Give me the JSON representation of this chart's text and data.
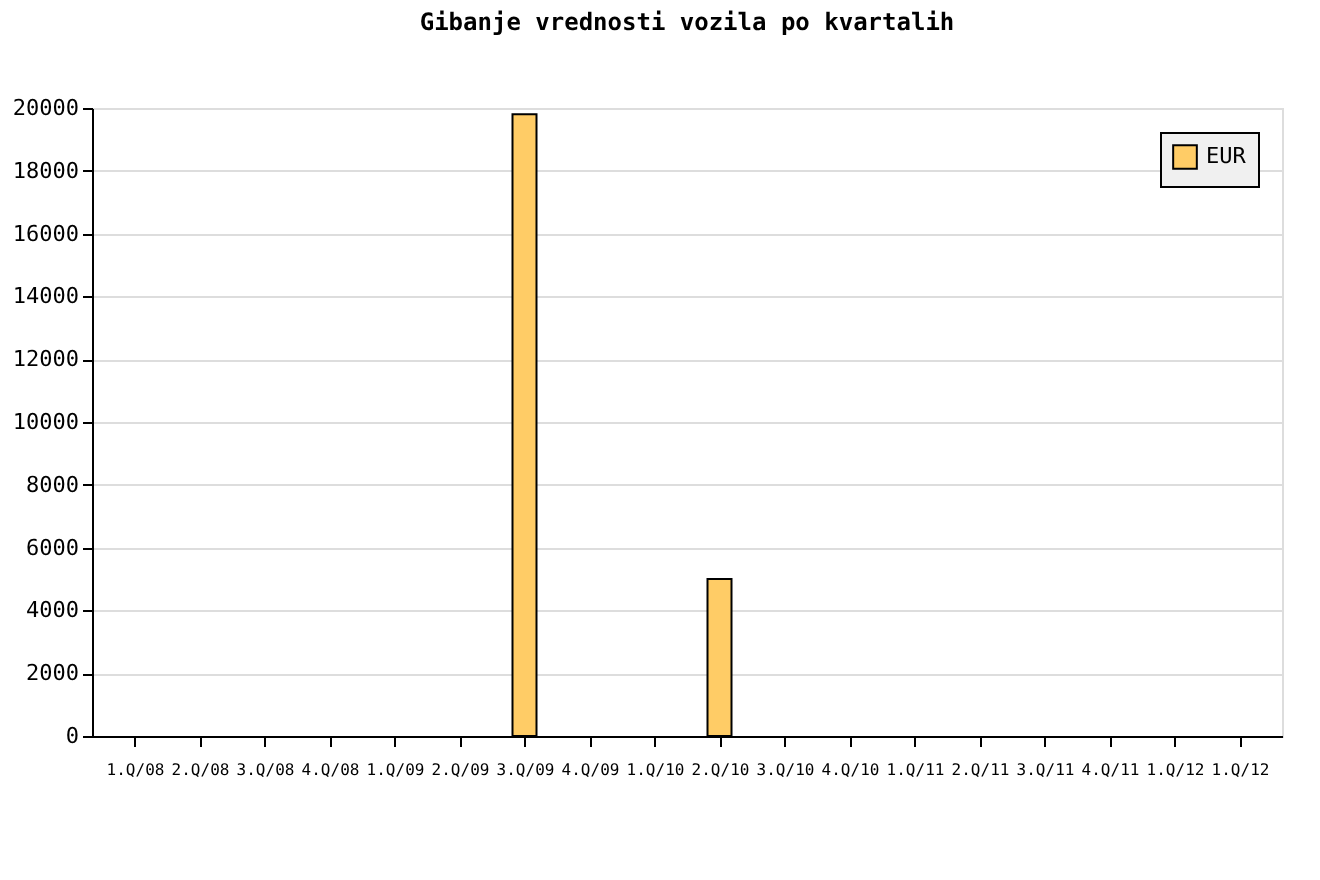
{
  "chart_data": {
    "type": "bar",
    "title": "Gibanje vrednosti vozila po kvartalih",
    "categories": [
      "1.Q/08",
      "2.Q/08",
      "3.Q/08",
      "4.Q/08",
      "1.Q/09",
      "2.Q/09",
      "3.Q/09",
      "4.Q/09",
      "1.Q/10",
      "2.Q/10",
      "3.Q/10",
      "4.Q/10",
      "1.Q/11",
      "2.Q/11",
      "3.Q/11",
      "4.Q/11",
      "1.Q/12",
      "1.Q/12"
    ],
    "series": [
      {
        "name": "EUR",
        "color": "#ffcc66",
        "values": [
          0,
          0,
          0,
          0,
          0,
          0,
          19800,
          0,
          0,
          5000,
          0,
          0,
          0,
          0,
          0,
          0,
          0,
          0
        ]
      }
    ],
    "ylim": [
      0,
      20000
    ],
    "yticks": [
      0,
      2000,
      4000,
      6000,
      8000,
      10000,
      12000,
      14000,
      16000,
      18000,
      20000
    ],
    "grid": "y",
    "legend": "top right"
  }
}
